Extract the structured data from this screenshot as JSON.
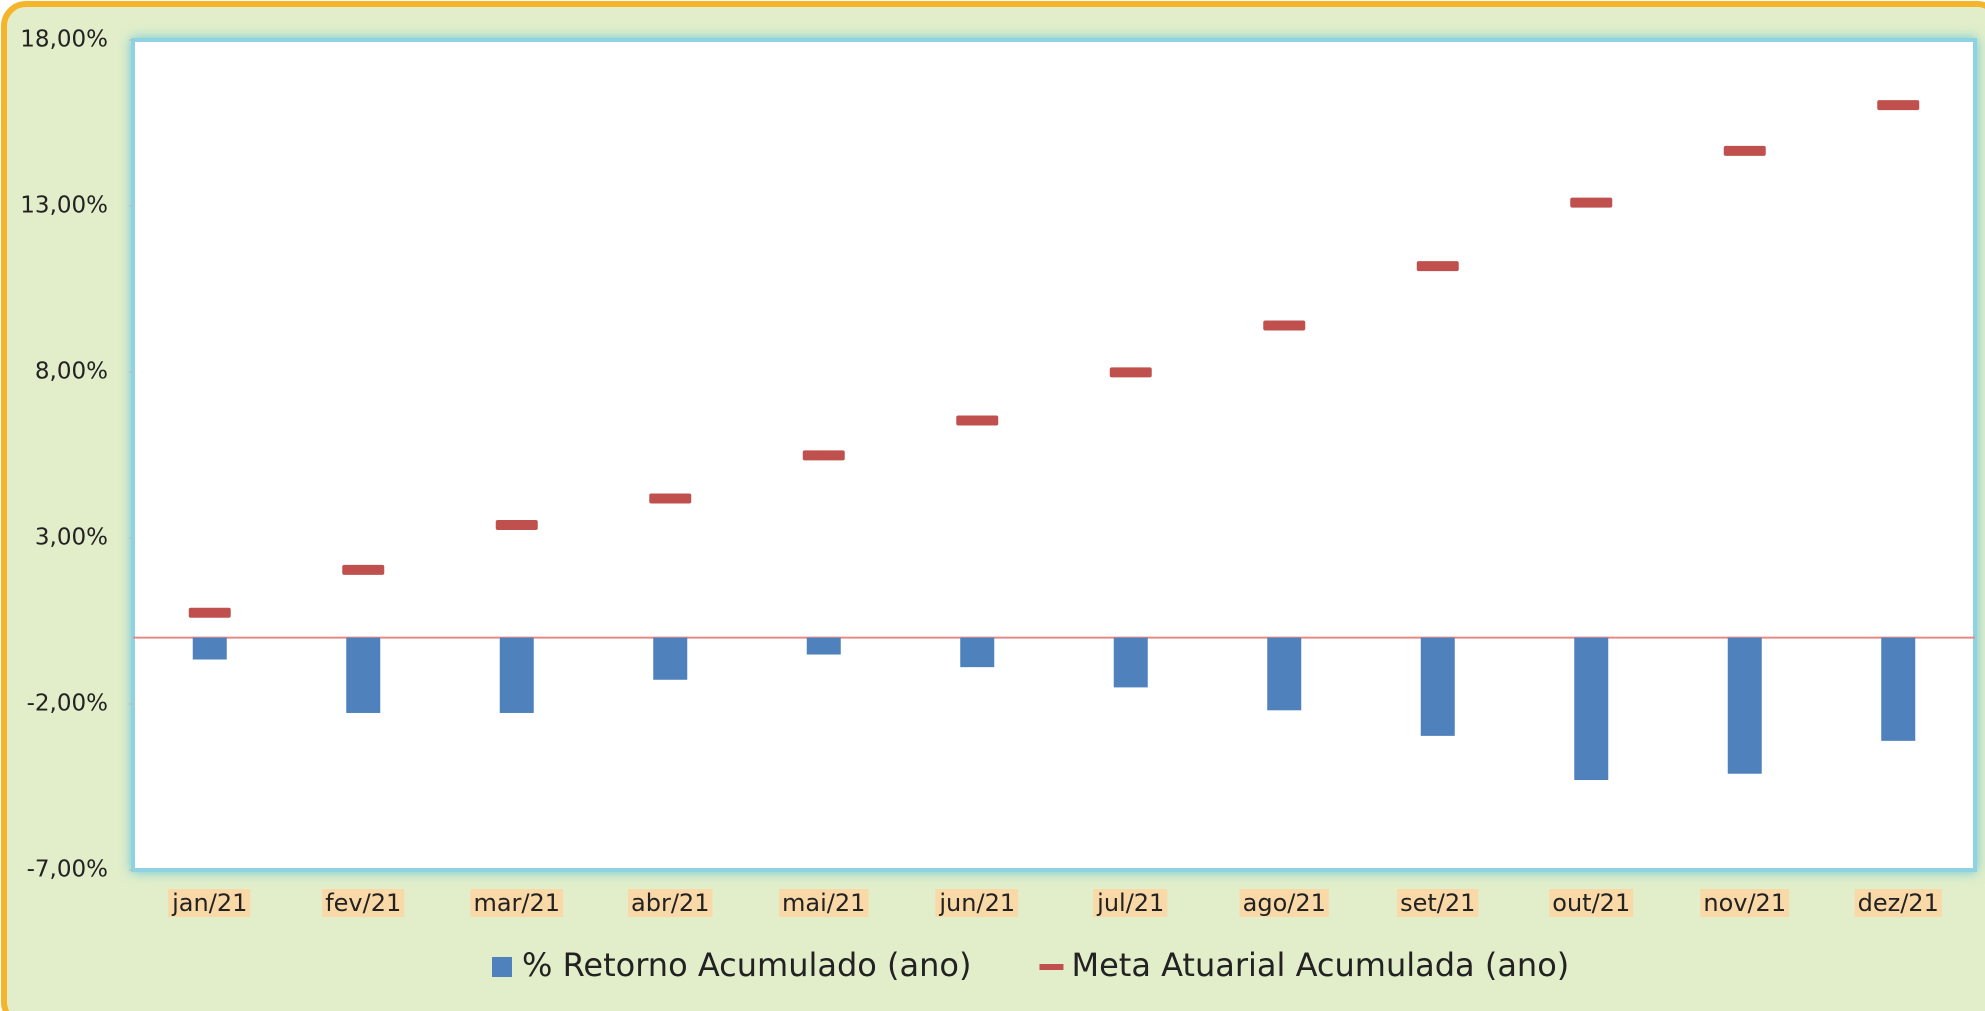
{
  "chart_data": {
    "type": "bar",
    "categories": [
      "jan/21",
      "fev/21",
      "mar/21",
      "abr/21",
      "mai/21",
      "jun/21",
      "jul/21",
      "ago/21",
      "set/21",
      "out/21",
      "nov/21",
      "dez/21"
    ],
    "series": [
      {
        "name": "% Retorno Acumulado (ano)",
        "type": "bar",
        "color": "#4f81bd",
        "values": [
          -0.66,
          -2.27,
          -2.27,
          -1.27,
          -0.51,
          -0.89,
          -1.5,
          -2.19,
          -2.96,
          -4.29,
          -4.1,
          -3.11
        ]
      },
      {
        "name": "Meta Atuarial Acumulada (ano)",
        "type": "marker",
        "color": "#c0504d",
        "values": [
          0.75,
          2.04,
          3.39,
          4.19,
          5.49,
          6.54,
          7.99,
          9.4,
          11.19,
          13.1,
          14.66,
          16.04
        ]
      }
    ],
    "ylim": [
      -7,
      18
    ],
    "yticks": [
      {
        "value": 18,
        "label": "18,00%"
      },
      {
        "value": 13,
        "label": "13,00%"
      },
      {
        "value": 8,
        "label": "8,00%"
      },
      {
        "value": 3,
        "label": "3,00%"
      },
      {
        "value": -2,
        "label": "-2,00%"
      },
      {
        "value": -7,
        "label": "-7,00%"
      }
    ],
    "legend": "bottom"
  }
}
